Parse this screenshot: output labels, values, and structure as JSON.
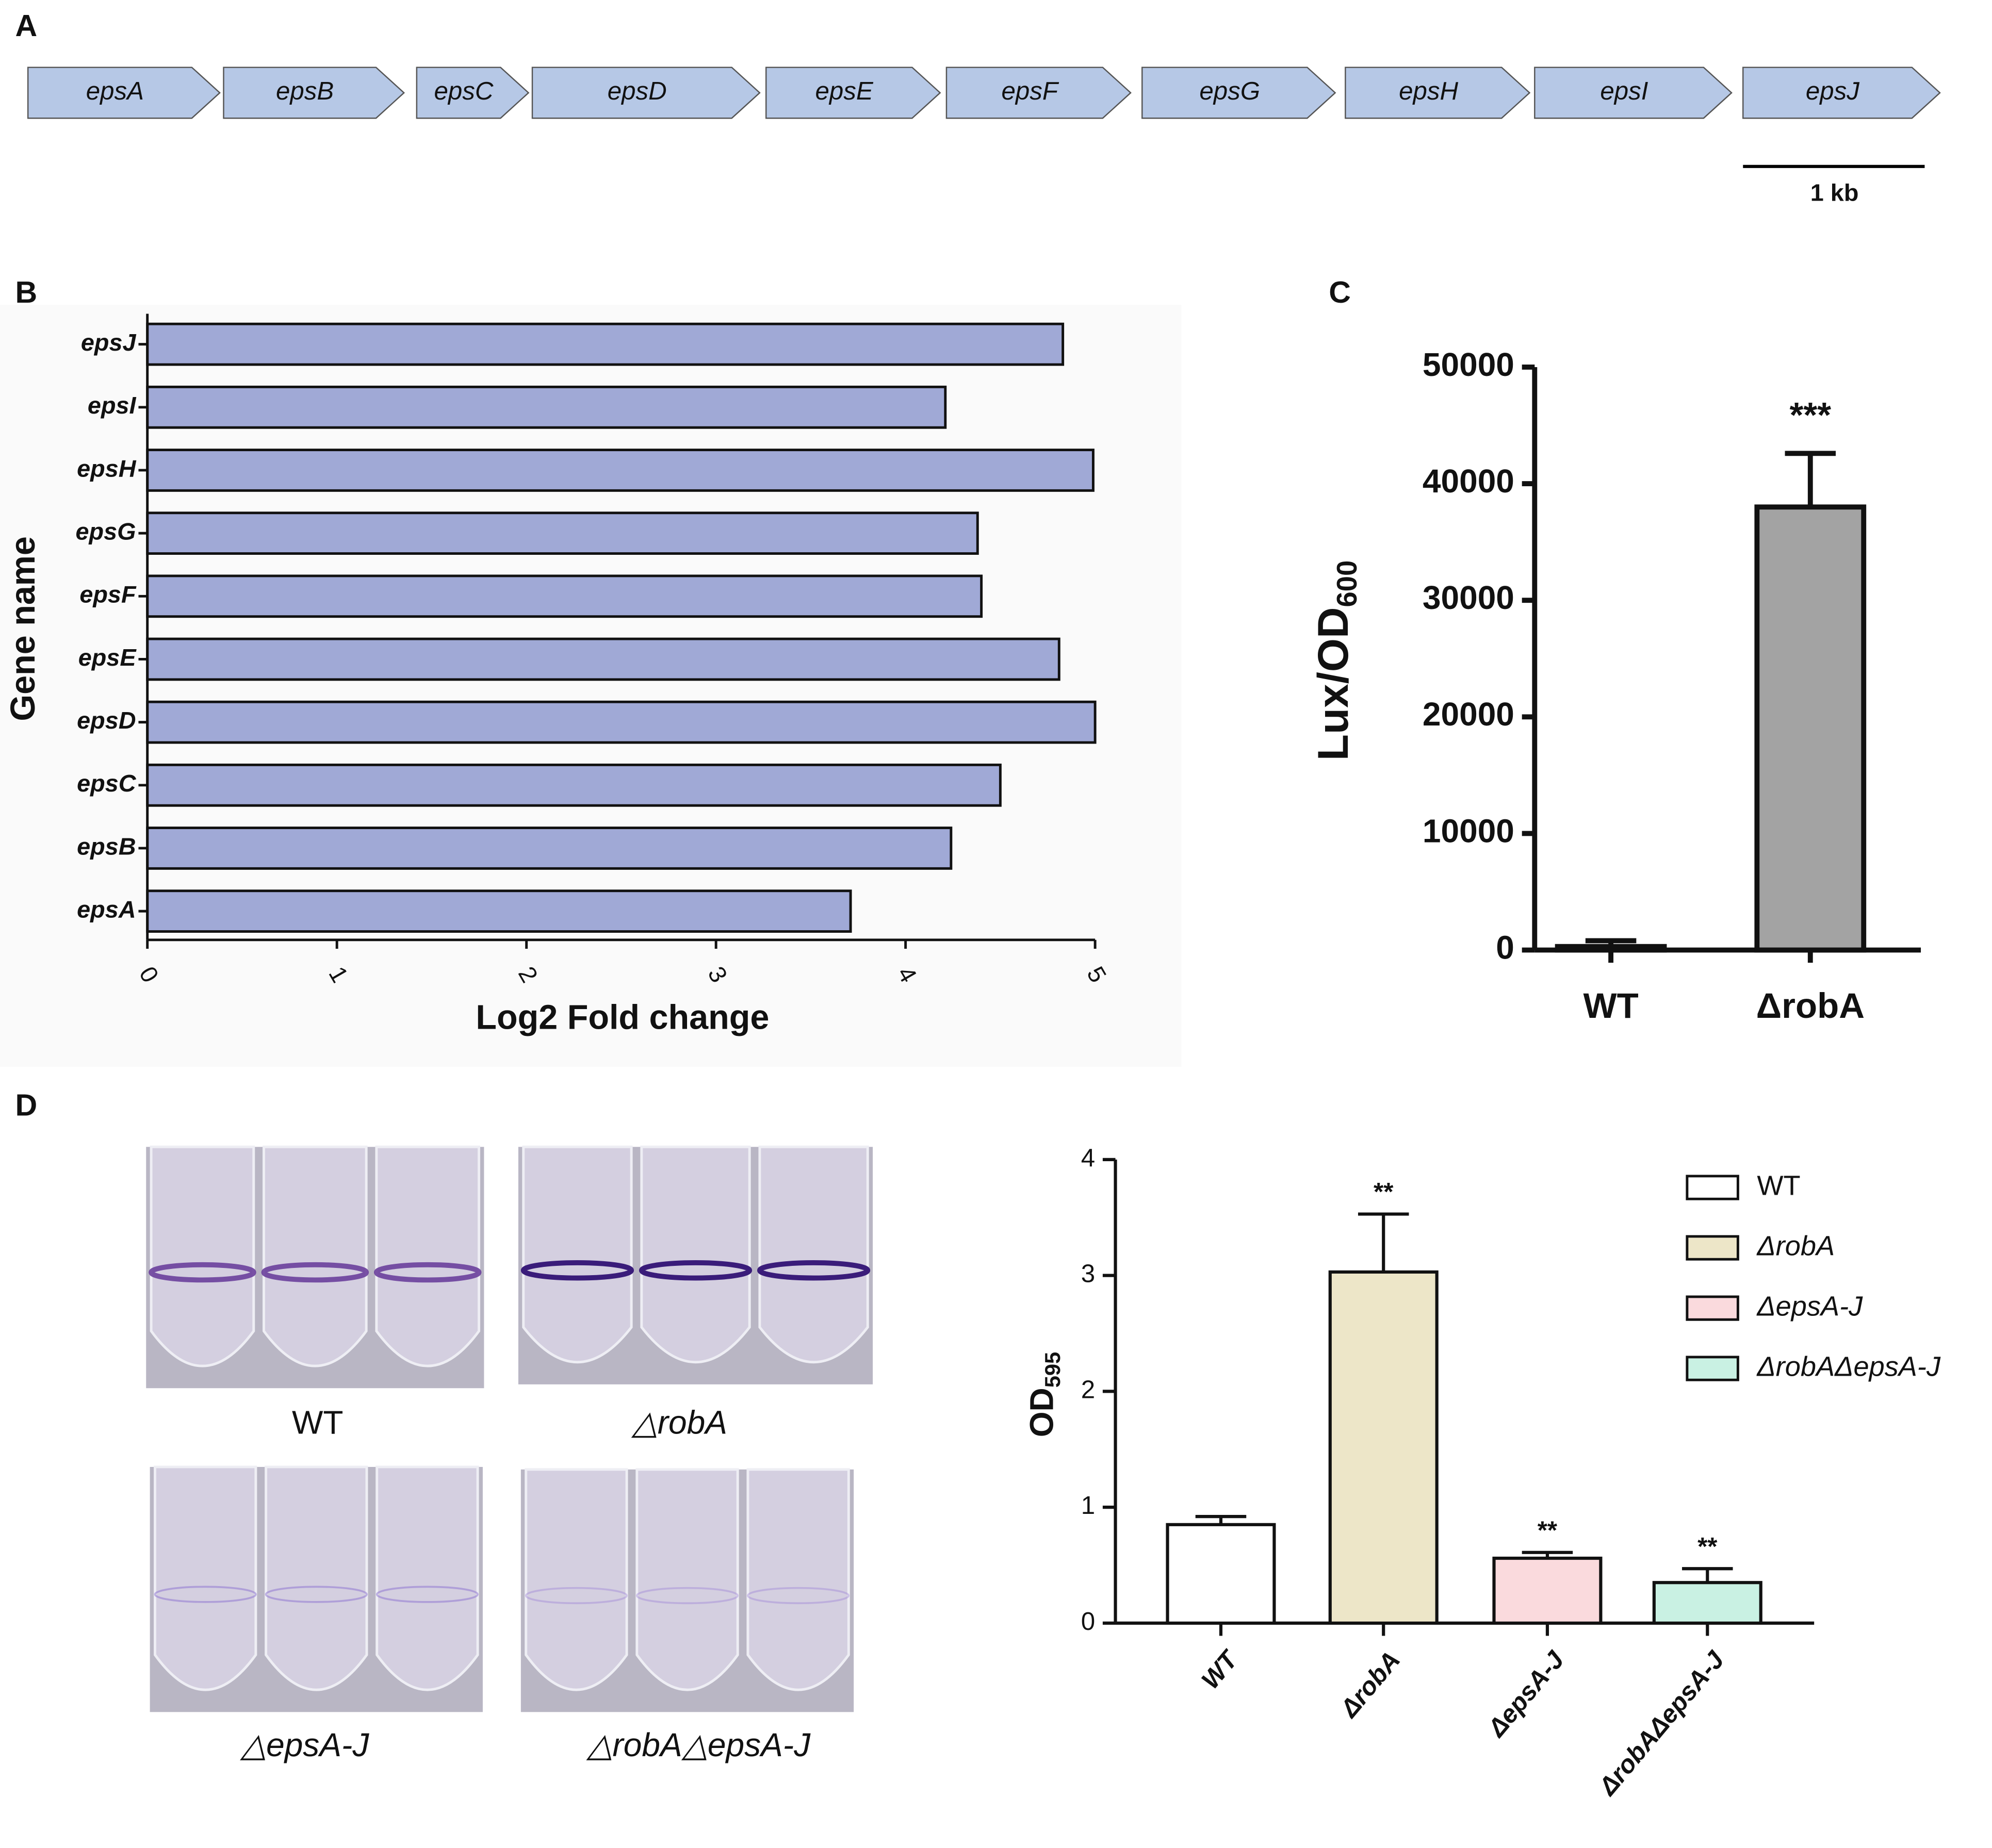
{
  "panel_labels": [
    "A",
    "B",
    "C",
    "D"
  ],
  "gene_map": {
    "genes": [
      "epsA",
      "epsB",
      "epsC",
      "epsD",
      "epsE",
      "epsF",
      "epsG",
      "epsH",
      "epsI",
      "epsJ"
    ],
    "scale_label": "1 kb"
  },
  "photos": {
    "labels": [
      "WT",
      "△robA",
      "△epsA-J",
      "△robA△epsA-J"
    ]
  },
  "chart_data": [
    {
      "type": "hbar",
      "categories": [
        "epsJ",
        "epsI",
        "epsH",
        "epsG",
        "epsF",
        "epsE",
        "epsD",
        "epsC",
        "epsB",
        "epsA"
      ],
      "values": [
        4.83,
        4.21,
        4.99,
        4.38,
        4.4,
        4.81,
        5.0,
        4.5,
        4.24,
        3.71
      ],
      "color": "#a0a9d6",
      "x_label": "Log2 Fold change",
      "y_label": "Gene name",
      "xlim": [
        0,
        5
      ],
      "xticks": [
        0,
        1,
        2,
        3,
        4,
        5
      ]
    },
    {
      "type": "bar",
      "categories": [
        "WT",
        "ΔrobA"
      ],
      "values": [
        300,
        38000
      ],
      "errors": [
        500,
        4600
      ],
      "color": "#a3a3a3",
      "y_label": "Lux/OD",
      "y_label_sub": "600",
      "significance": [
        null,
        "***"
      ],
      "ylim": [
        0,
        50000
      ],
      "yticks": [
        0,
        10000,
        20000,
        30000,
        40000,
        50000
      ]
    },
    {
      "type": "bar",
      "categories": [
        "WT",
        "ΔrobA",
        "ΔepsA-J",
        "ΔrobAΔepsA-J"
      ],
      "values": [
        0.85,
        3.03,
        0.56,
        0.35
      ],
      "errors": [
        0.07,
        0.5,
        0.05,
        0.12
      ],
      "colors": [
        "#ffffff",
        "#ede6c8",
        "#fadadd",
        "#c9f1e3"
      ],
      "y_label": "OD",
      "y_label_sub": "595",
      "significance": [
        null,
        "**",
        "**",
        "**"
      ],
      "legend": "top-right",
      "ylim": [
        0,
        4
      ],
      "yticks": [
        0,
        1,
        2,
        3,
        4
      ]
    }
  ]
}
